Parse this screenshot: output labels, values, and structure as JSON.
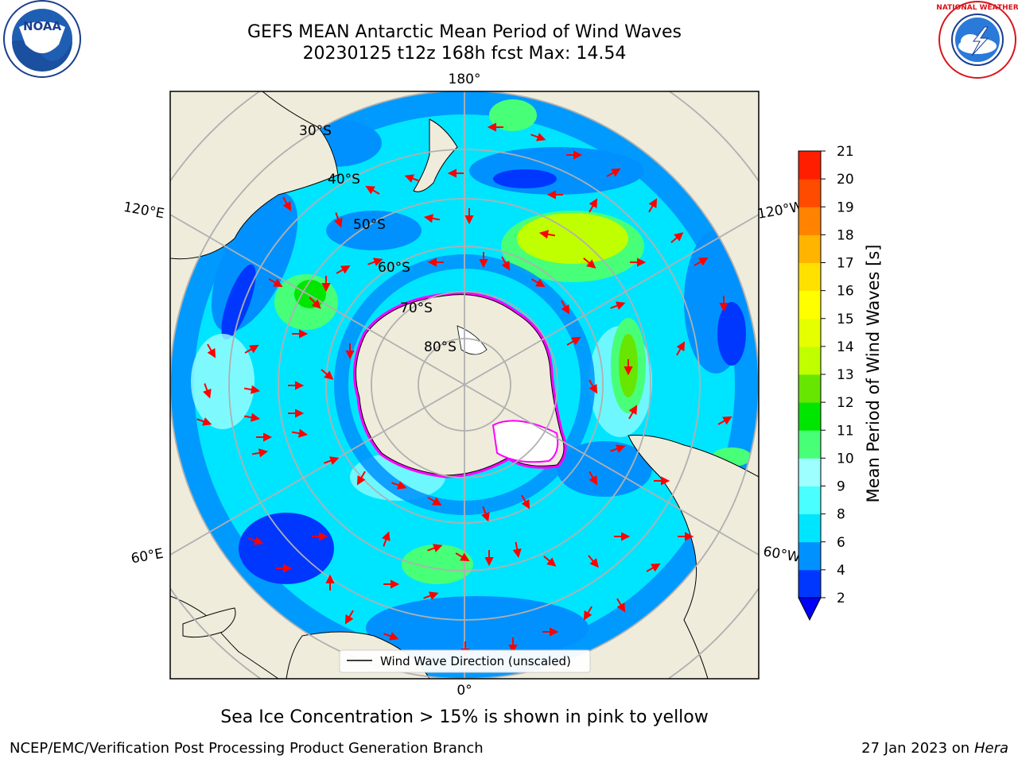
{
  "header": {
    "title_line1": "GEFS MEAN Antarctic Mean Period of Wind Waves",
    "title_line2": "20230125 t12z 168h fcst   Max: 14.54"
  },
  "logos": {
    "left": {
      "icon": "noaa-logo",
      "text": "NOAA",
      "ring_text": "NATIONAL OCEANIC AND ATMOSPHERIC ADMINISTRATION · U.S. DEPARTMENT OF COMMERCE"
    },
    "right": {
      "icon": "nws-logo",
      "ring_text": "NATIONAL WEATHER SERVICE"
    }
  },
  "map": {
    "projection": "south-polar-stereographic",
    "longitude_labels": {
      "top": "180°",
      "bottom": "0°",
      "left_upper": "120°E",
      "left_lower": "60°E",
      "right_upper": "120°W",
      "right_lower": "60°W"
    },
    "latitude_labels": [
      "30°S",
      "40°S",
      "50°S",
      "60°S",
      "70°S",
      "80°S"
    ],
    "legend_label": "Wind Wave Direction (unscaled)"
  },
  "colorbar": {
    "label": "Mean Period of Wind Waves [s]",
    "ticks": [
      "2",
      "4",
      "6",
      "8",
      "9",
      "10",
      "11",
      "12",
      "13",
      "14",
      "15",
      "16",
      "17",
      "18",
      "19",
      "20",
      "21"
    ],
    "colors": [
      "#0037ff",
      "#0091ff",
      "#00e5ff",
      "#49ffff",
      "#9dffff",
      "#48ff78",
      "#00e600",
      "#66e600",
      "#bfff00",
      "#e6ff00",
      "#ffff00",
      "#ffe100",
      "#ffb400",
      "#ff8200",
      "#ff4b00",
      "#ff1e00",
      "#ff0000"
    ],
    "extend_color": "#0000ff"
  },
  "notes": {
    "sea_ice": "Sea Ice Concentration > 15% is shown in pink to yellow"
  },
  "footer": {
    "left": "NCEP/EMC/Verification Post Processing Product Generation Branch",
    "right_prefix": "27 Jan 2023 on ",
    "right_host": "Hera"
  }
}
